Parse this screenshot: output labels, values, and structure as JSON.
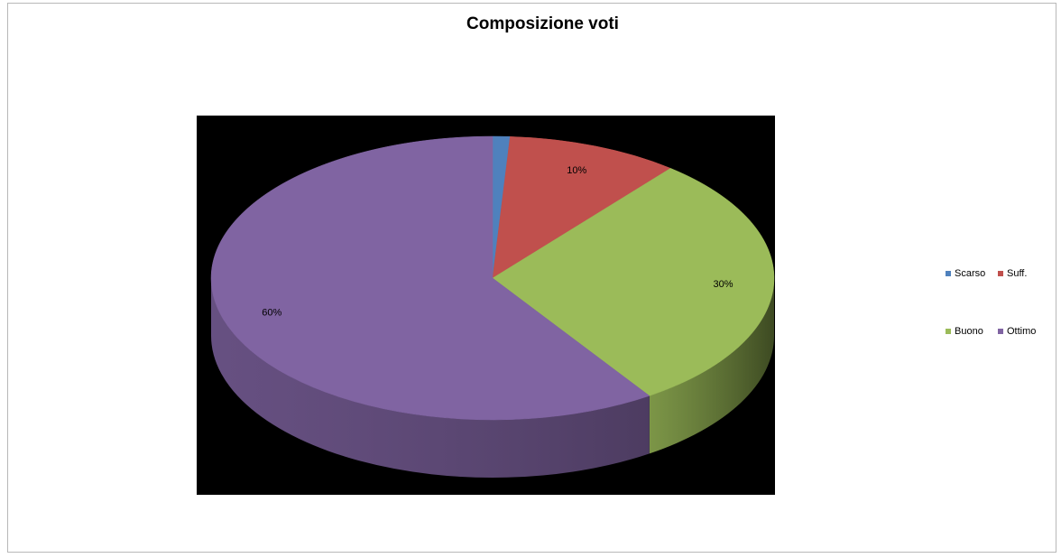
{
  "chart_data": {
    "type": "pie",
    "title": "Composizione voti",
    "categories": [
      "Scarso",
      "Suff.",
      "Buono",
      "Ottimo"
    ],
    "values": [
      0.01,
      0.1,
      0.3,
      0.6
    ],
    "data_labels": [
      "",
      "10%",
      "30%",
      "60%"
    ],
    "colors": [
      "#4f81bd",
      "#c0504d",
      "#9bbb59",
      "#8064a2"
    ],
    "side_colors": [
      "#2f4d71",
      "#73302e",
      "#3d4a22",
      "#4d3c61"
    ],
    "plot_background": "#000000",
    "legend_position": "right",
    "three_d": true
  }
}
